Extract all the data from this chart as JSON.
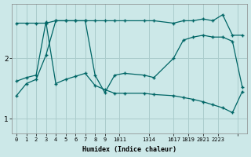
{
  "xlabel": "Humidex (Indice chaleur)",
  "bg_color": "#cce8e8",
  "grid_color": "#aacccc",
  "line_color": "#006666",
  "yticks": [
    1,
    2
  ],
  "ytick_labels": [
    "1",
    "2"
  ],
  "ylim": [
    0.75,
    2.9
  ],
  "xlim": [
    -0.5,
    23.5
  ],
  "xtick_positions": [
    0,
    1,
    2,
    3,
    4,
    5,
    6,
    7,
    8,
    9,
    10.5,
    13.5,
    16,
    17.5,
    19,
    20.5,
    22.5
  ],
  "xtick_labels": [
    "0",
    "1",
    "2",
    "3",
    "4",
    "5",
    "6",
    "7",
    "8",
    "9",
    "1011",
    "1314",
    "1617",
    "1819",
    "2021",
    "2223",
    ""
  ],
  "series1_x": [
    0,
    1,
    2,
    3,
    4,
    5,
    6,
    7,
    8,
    9,
    10,
    11,
    13,
    14,
    16,
    17,
    18,
    19,
    20,
    21,
    22,
    23
  ],
  "series1_y": [
    2.58,
    2.58,
    2.58,
    2.58,
    2.62,
    2.62,
    2.62,
    2.62,
    2.62,
    2.62,
    2.62,
    2.62,
    2.62,
    2.62,
    2.58,
    2.62,
    2.62,
    2.65,
    2.62,
    2.72,
    2.38,
    2.38
  ],
  "series2_x": [
    0,
    1,
    2,
    3,
    4,
    5,
    6,
    7,
    8,
    9,
    10,
    11,
    13,
    14,
    16,
    17,
    18,
    19,
    20,
    21,
    22,
    23
  ],
  "series2_y": [
    1.38,
    1.58,
    1.65,
    2.05,
    2.62,
    2.62,
    2.62,
    2.62,
    1.72,
    1.43,
    1.72,
    1.75,
    1.72,
    1.68,
    2.0,
    2.3,
    2.35,
    2.38,
    2.35,
    2.35,
    2.28,
    1.52
  ],
  "series3_x": [
    0,
    1,
    2,
    3,
    4,
    5,
    6,
    7,
    8,
    9,
    10,
    11,
    13,
    14,
    16,
    17,
    18,
    19,
    20,
    21,
    22,
    23
  ],
  "series3_y": [
    1.62,
    1.68,
    1.72,
    2.6,
    1.58,
    1.65,
    1.7,
    1.75,
    1.55,
    1.48,
    1.42,
    1.42,
    1.42,
    1.4,
    1.38,
    1.35,
    1.32,
    1.28,
    1.23,
    1.18,
    1.1,
    1.45
  ]
}
